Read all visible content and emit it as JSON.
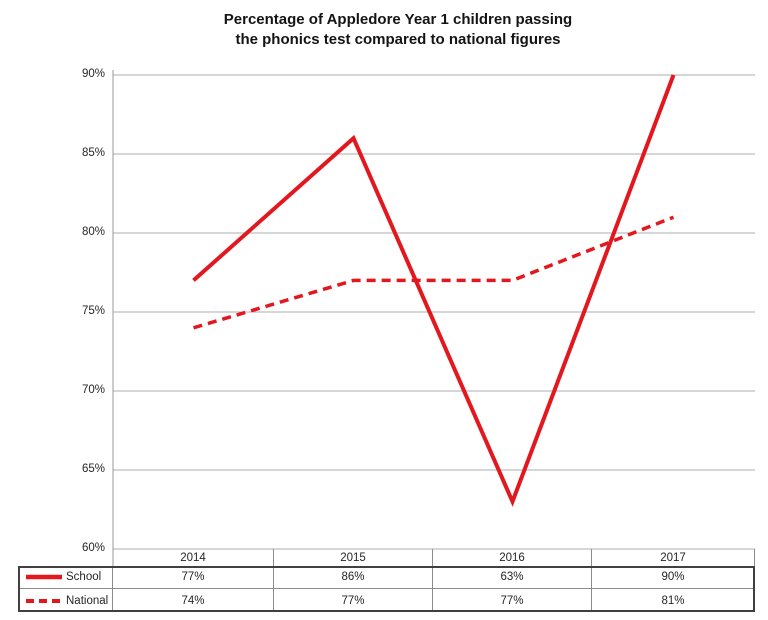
{
  "title": {
    "line1": "Percentage of Appledore Year 1 children passing",
    "line2": "the phonics test compared to national figures"
  },
  "chart_data": {
    "type": "line",
    "title": "Percentage of Appledore Year 1 children passing the phonics test compared to national figures",
    "categories": [
      "2014",
      "2015",
      "2016",
      "2017"
    ],
    "series": [
      {
        "name": "School",
        "values": [
          77,
          86,
          63,
          90
        ],
        "style": "solid",
        "color": "#e3171e"
      },
      {
        "name": "National",
        "values": [
          74,
          77,
          77,
          81
        ],
        "style": "dashed",
        "color": "#e3171e"
      }
    ],
    "ylim": [
      60,
      90
    ],
    "ytick_values": [
      90,
      85,
      80,
      75,
      70,
      65,
      60
    ],
    "ytick_labels": [
      "90%",
      "85%",
      "80%",
      "75%",
      "70%",
      "65%",
      "60%"
    ],
    "grid": true,
    "legend_position": "table-left"
  },
  "table": {
    "years": [
      "2014",
      "2015",
      "2016",
      "2017"
    ],
    "rows": [
      {
        "label": "School",
        "values": [
          "77%",
          "86%",
          "63%",
          "90%"
        ]
      },
      {
        "label": "National",
        "values": [
          "74%",
          "77%",
          "77%",
          "81%"
        ]
      }
    ]
  },
  "colors": {
    "line_red": "#e3171e",
    "gridline": "#aeaeae",
    "axis": "#9a9a9a",
    "table_border": "#8c8c8c",
    "outer_border": "#404040",
    "text": "#262626"
  }
}
